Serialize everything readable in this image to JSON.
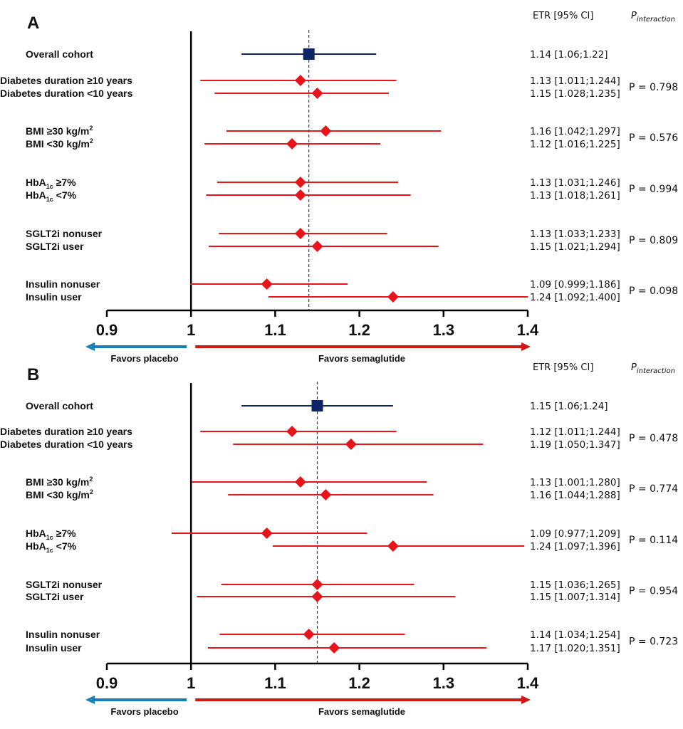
{
  "chart_data": [
    {
      "panel": "A",
      "type": "forest",
      "header_etr": "ETR [95% CI]",
      "header_p": "P",
      "header_p_sub": "interaction",
      "xlim": [
        0.9,
        1.4
      ],
      "xticks": [
        "0.9",
        "1",
        "1.1",
        "1.2",
        "1.3",
        "1.4"
      ],
      "reference_line": 1,
      "overall_line": 1.14,
      "favors_left": "Favors placebo",
      "favors_right": "Favors semaglutide",
      "groups": [
        {
          "p": "",
          "rows": [
            {
              "label": "Overall cohort",
              "est": 1.14,
              "lo": 1.06,
              "hi": 1.22,
              "text": "1.14 [1.06;1.22]",
              "overall": true
            }
          ]
        },
        {
          "p": "P = 0.798",
          "rows": [
            {
              "label": "Diabetes duration ≥10 years",
              "est": 1.13,
              "lo": 1.011,
              "hi": 1.244,
              "text": "1.13 [1.011;1.244]"
            },
            {
              "label": "Diabetes duration <10 years",
              "est": 1.15,
              "lo": 1.028,
              "hi": 1.235,
              "text": "1.15 [1.028;1.235]"
            }
          ]
        },
        {
          "p": "P = 0.576",
          "rows": [
            {
              "label": "BMI ≥30 kg/m",
              "sup": "2",
              "est": 1.16,
              "lo": 1.042,
              "hi": 1.297,
              "text": "1.16 [1.042;1.297]"
            },
            {
              "label": "BMI <30 kg/m",
              "sup": "2",
              "est": 1.12,
              "lo": 1.016,
              "hi": 1.225,
              "text": "1.12 [1.016;1.225]"
            }
          ]
        },
        {
          "p": "P = 0.994",
          "rows": [
            {
              "label": "HbA",
              "sub": "1c",
              "label_tail": " ≥7%",
              "est": 1.13,
              "lo": 1.031,
              "hi": 1.246,
              "text": "1.13 [1.031;1.246]"
            },
            {
              "label": "HbA",
              "sub": "1c",
              "label_tail": " <7%",
              "est": 1.13,
              "lo": 1.018,
              "hi": 1.261,
              "text": "1.13 [1.018;1.261]"
            }
          ]
        },
        {
          "p": "P = 0.809",
          "rows": [
            {
              "label": "SGLT2i nonuser",
              "est": 1.13,
              "lo": 1.033,
              "hi": 1.233,
              "text": "1.13 [1.033;1.233]"
            },
            {
              "label": "SGLT2i user",
              "est": 1.15,
              "lo": 1.021,
              "hi": 1.294,
              "text": "1.15 [1.021;1.294]"
            }
          ]
        },
        {
          "p": "P = 0.098",
          "rows": [
            {
              "label": "Insulin nonuser",
              "est": 1.09,
              "lo": 0.999,
              "hi": 1.186,
              "text": "1.09 [0.999;1.186]"
            },
            {
              "label": "Insulin user",
              "est": 1.24,
              "lo": 1.092,
              "hi": 1.4,
              "text": "1.24 [1.092;1.400]"
            }
          ]
        }
      ]
    },
    {
      "panel": "B",
      "type": "forest",
      "header_etr": "ETR [95% CI]",
      "header_p": "P",
      "header_p_sub": "interaction",
      "xlim": [
        0.9,
        1.4
      ],
      "xticks": [
        "0.9",
        "1",
        "1.1",
        "1.2",
        "1.3",
        "1.4"
      ],
      "reference_line": 1,
      "overall_line": 1.15,
      "favors_left": "Favors placebo",
      "favors_right": "Favors semaglutide",
      "groups": [
        {
          "p": "",
          "rows": [
            {
              "label": "Overall cohort",
              "est": 1.15,
              "lo": 1.06,
              "hi": 1.24,
              "text": "1.15 [1.06;1.24]",
              "overall": true
            }
          ]
        },
        {
          "p": "P = 0.478",
          "rows": [
            {
              "label": "Diabetes duration ≥10 years",
              "est": 1.12,
              "lo": 1.011,
              "hi": 1.244,
              "text": "1.12 [1.011;1.244]"
            },
            {
              "label": "Diabetes duration <10 years",
              "est": 1.19,
              "lo": 1.05,
              "hi": 1.347,
              "text": "1.19 [1.050;1.347]"
            }
          ]
        },
        {
          "p": "P = 0.774",
          "rows": [
            {
              "label": "BMI ≥30 kg/m",
              "sup": "2",
              "est": 1.13,
              "lo": 1.001,
              "hi": 1.28,
              "text": "1.13 [1.001;1.280]"
            },
            {
              "label": "BMI <30 kg/m",
              "sup": "2",
              "est": 1.16,
              "lo": 1.044,
              "hi": 1.288,
              "text": "1.16 [1.044;1.288]"
            }
          ]
        },
        {
          "p": "P = 0.114",
          "rows": [
            {
              "label": "HbA",
              "sub": "1c",
              "label_tail": " ≥7%",
              "est": 1.09,
              "lo": 0.977,
              "hi": 1.209,
              "text": "1.09 [0.977;1.209]"
            },
            {
              "label": "HbA",
              "sub": "1c",
              "label_tail": " <7%",
              "est": 1.24,
              "lo": 1.097,
              "hi": 1.396,
              "text": "1.24 [1.097;1.396]"
            }
          ]
        },
        {
          "p": "P = 0.954",
          "rows": [
            {
              "label": "SGLT2i nonuser",
              "est": 1.15,
              "lo": 1.036,
              "hi": 1.265,
              "text": "1.15 [1.036;1.265]"
            },
            {
              "label": "SGLT2i user",
              "est": 1.15,
              "lo": 1.007,
              "hi": 1.314,
              "text": "1.15 [1.007;1.314]"
            }
          ]
        },
        {
          "p": "P = 0.723",
          "rows": [
            {
              "label": "Insulin nonuser",
              "est": 1.14,
              "lo": 1.034,
              "hi": 1.254,
              "text": "1.14 [1.034;1.254]"
            },
            {
              "label": "Insulin user",
              "est": 1.17,
              "lo": 1.02,
              "hi": 1.351,
              "text": "1.17 [1.020;1.351]"
            }
          ]
        }
      ]
    }
  ],
  "colors": {
    "overall": "#0d2566",
    "subgroup": "#e8141b",
    "reference": "#000000",
    "dashed": "#2a3f7a",
    "arrow_left": "#1a7fb8",
    "arrow_right": "#cc1a1a"
  }
}
